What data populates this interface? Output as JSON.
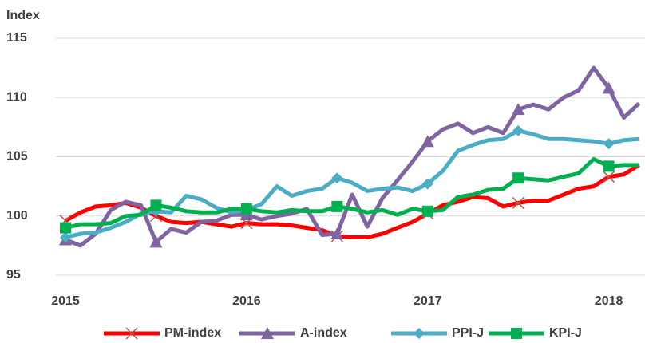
{
  "chart_data": {
    "type": "line",
    "y_label": "Index",
    "x": [
      2015,
      2015.083,
      2015.167,
      2015.25,
      2015.333,
      2015.417,
      2015.5,
      2015.583,
      2015.667,
      2015.75,
      2015.833,
      2015.917,
      2016,
      2016.083,
      2016.167,
      2016.25,
      2016.333,
      2016.417,
      2016.5,
      2016.583,
      2016.667,
      2016.75,
      2016.833,
      2016.917,
      2017,
      2017.083,
      2017.167,
      2017.25,
      2017.333,
      2017.417,
      2017.5,
      2017.583,
      2017.667,
      2017.75,
      2017.833,
      2017.917,
      2018,
      2018.083,
      2018.167
    ],
    "xlim": [
      2015,
      2018.2
    ],
    "xticks": [
      2015,
      2016,
      2017,
      2018
    ],
    "ylim": [
      95,
      115
    ],
    "yticks": [
      95,
      100,
      105,
      110,
      115
    ],
    "grid": true,
    "series": [
      {
        "name": "PM-index",
        "color": "#ff0000",
        "marker": "x",
        "values": [
          99.6,
          100.3,
          100.8,
          100.9,
          101.1,
          100.7,
          100.0,
          99.5,
          99.4,
          99.5,
          99.3,
          99.1,
          99.4,
          99.3,
          99.3,
          99.2,
          99.0,
          98.8,
          98.3,
          98.2,
          98.2,
          98.5,
          99.0,
          99.5,
          100.2,
          100.9,
          101.2,
          101.6,
          101.5,
          100.8,
          101.1,
          101.3,
          101.3,
          101.8,
          102.3,
          102.5,
          103.3,
          103.5,
          104.3
        ]
      },
      {
        "name": "A-index",
        "color": "#8064a2",
        "marker": "triangle",
        "values": [
          98.0,
          97.5,
          98.5,
          100.5,
          101.2,
          100.9,
          97.8,
          98.9,
          98.6,
          99.5,
          99.6,
          100.1,
          100.1,
          99.7,
          100.0,
          100.2,
          100.6,
          98.4,
          98.5,
          101.8,
          99.1,
          101.5,
          103.0,
          104.6,
          106.3,
          107.3,
          107.8,
          107.0,
          107.5,
          107.0,
          109.0,
          109.4,
          109.0,
          110.0,
          110.6,
          112.5,
          110.8,
          108.3,
          109.5
        ]
      },
      {
        "name": "PPI-J",
        "color": "#4bacc6",
        "marker": "diamond",
        "values": [
          98.2,
          98.5,
          98.6,
          99.0,
          99.5,
          100.2,
          100.4,
          100.3,
          101.7,
          101.4,
          100.7,
          100.3,
          100.5,
          101.0,
          102.5,
          101.7,
          102.1,
          102.3,
          103.2,
          102.8,
          102.1,
          102.3,
          102.4,
          102.1,
          102.7,
          103.8,
          105.5,
          106.0,
          106.4,
          106.5,
          107.2,
          106.9,
          106.5,
          106.5,
          106.4,
          106.3,
          106.1,
          106.4,
          106.5
        ]
      },
      {
        "name": "KPI-J",
        "color": "#00b050",
        "marker": "square",
        "values": [
          99.0,
          99.3,
          99.3,
          99.4,
          100.0,
          100.1,
          100.9,
          100.7,
          100.4,
          100.3,
          100.3,
          100.6,
          100.6,
          100.4,
          100.3,
          100.5,
          100.4,
          100.4,
          100.8,
          100.6,
          100.3,
          100.5,
          100.1,
          100.6,
          100.4,
          100.5,
          101.6,
          101.8,
          102.2,
          102.3,
          103.2,
          103.1,
          103.0,
          103.3,
          103.6,
          104.8,
          104.2,
          104.3,
          104.3
        ]
      }
    ]
  }
}
